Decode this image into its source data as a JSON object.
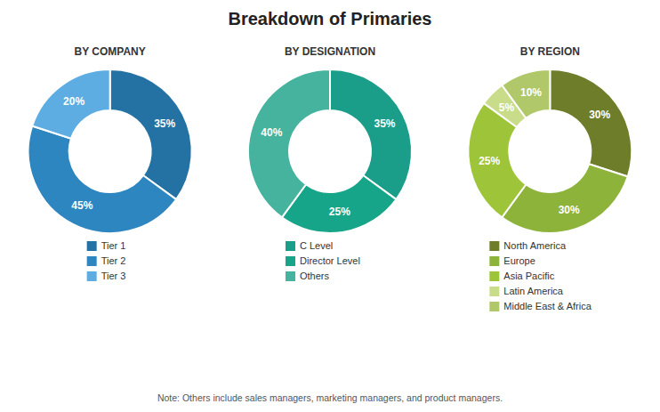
{
  "title": "Breakdown of Primaries",
  "annotations": [
    "Note: Others include sales managers, marketing managers, and product managers."
  ],
  "chart_data": [
    {
      "type": "donut",
      "title": "BY COMPANY",
      "categories": [
        "Tier 1",
        "Tier 2",
        "Tier 3"
      ],
      "values": [
        35,
        45,
        20
      ],
      "value_labels": [
        "35%",
        "45%",
        "20%"
      ],
      "colors": [
        "#2471A3",
        "#2E86C1",
        "#5DADE2"
      ],
      "data_labels": true,
      "legend": "bottom"
    },
    {
      "type": "donut",
      "title": "BY DESIGNATION",
      "categories": [
        "C Level",
        "Director Level",
        "Others"
      ],
      "values": [
        35,
        25,
        40
      ],
      "value_labels": [
        "35%",
        "25%",
        "40%"
      ],
      "colors": [
        "#1A9E8A",
        "#17A589",
        "#45B39D"
      ],
      "data_labels": true,
      "legend": "bottom"
    },
    {
      "type": "donut",
      "title": "BY REGION",
      "categories": [
        "North America",
        "Europe",
        "Asia Pacific",
        "Latin America",
        "Middle East & Africa"
      ],
      "values": [
        30,
        30,
        25,
        5,
        10
      ],
      "value_labels": [
        "30%",
        "30%",
        "25%",
        "5%",
        "10%"
      ],
      "colors": [
        "#6E7D2A",
        "#8DB33A",
        "#9EC43A",
        "#C8DC8A",
        "#B0C86A"
      ],
      "data_labels": true,
      "legend": "bottom"
    }
  ]
}
